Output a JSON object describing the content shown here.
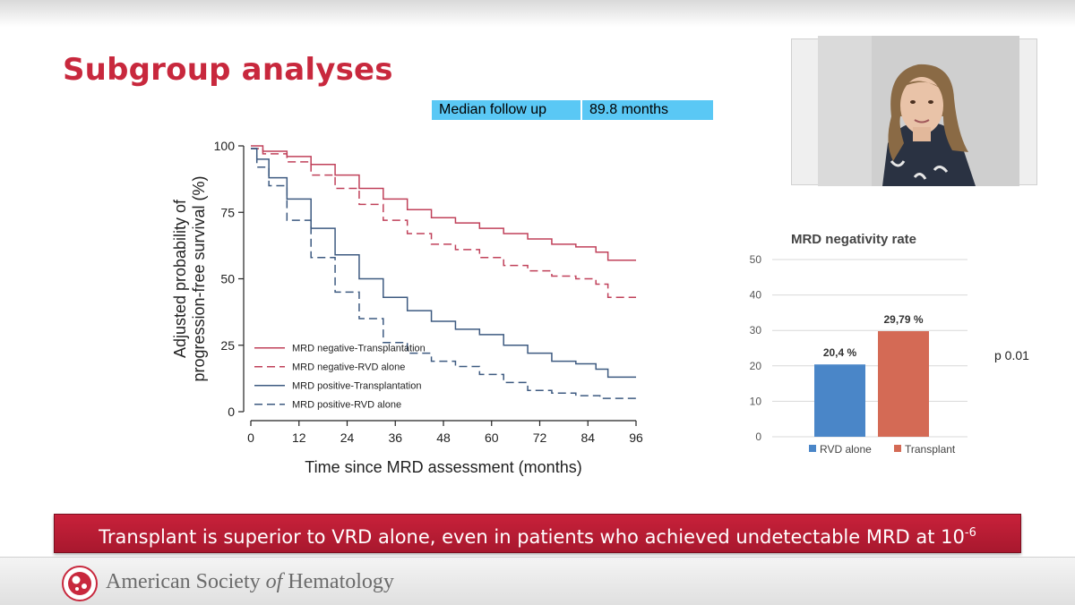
{
  "slide": {
    "title": "Subgroup analyses",
    "followup": {
      "label": "Median follow up",
      "value": "89.8 months"
    },
    "conclusion": {
      "text": "Transplant is superior to VRD alone, even in patients who achieved undetectable MRD at 10",
      "exponent": "-6"
    }
  },
  "footer": {
    "org_prefix": "American Society ",
    "org_of": "of",
    "org_suffix": " Hematology"
  },
  "colors": {
    "title_red": "#c8283d",
    "curve_red": "#c0415a",
    "curve_blue": "#3d5a80",
    "bar_blue": "#4a86c8",
    "bar_orange": "#d46a55",
    "highlight_cyan": "#5ac8f5"
  },
  "chart_data": [
    {
      "type": "line",
      "title": "",
      "xlabel": "Time since MRD assessment (months)",
      "ylabel_lines": [
        "Adjusted probability of",
        "progression-free survival (%)"
      ],
      "x_ticks": [
        0,
        12,
        24,
        36,
        48,
        60,
        72,
        84,
        96
      ],
      "y_ticks": [
        0,
        25,
        50,
        75,
        100
      ],
      "xlim": [
        0,
        96
      ],
      "ylim": [
        0,
        100
      ],
      "legend_position": "bottom-left",
      "series": [
        {
          "name": "MRD negative-Transplantation",
          "color": "#c0415a",
          "dash": "solid",
          "x": [
            0,
            6,
            12,
            18,
            24,
            30,
            36,
            42,
            48,
            54,
            60,
            66,
            72,
            78,
            84,
            88,
            90,
            96
          ],
          "y": [
            100,
            98,
            96,
            93,
            89,
            84,
            80,
            76,
            73,
            71,
            69,
            67,
            65,
            63,
            62,
            60,
            57,
            57
          ]
        },
        {
          "name": "MRD negative-RVD alone",
          "color": "#c0415a",
          "dash": "dashed",
          "x": [
            0,
            6,
            12,
            18,
            24,
            30,
            36,
            42,
            48,
            54,
            60,
            66,
            72,
            78,
            84,
            88,
            90,
            96
          ],
          "y": [
            99,
            97,
            94,
            89,
            84,
            78,
            72,
            67,
            63,
            61,
            58,
            55,
            53,
            51,
            50,
            48,
            43,
            43
          ]
        },
        {
          "name": "MRD positive-Transplantation",
          "color": "#3d5a80",
          "dash": "solid",
          "x": [
            0,
            3,
            6,
            12,
            18,
            24,
            30,
            36,
            42,
            48,
            54,
            60,
            66,
            72,
            78,
            84,
            88,
            90,
            96
          ],
          "y": [
            99,
            95,
            88,
            80,
            69,
            59,
            50,
            43,
            38,
            34,
            31,
            29,
            25,
            22,
            19,
            18,
            16,
            13,
            13
          ]
        },
        {
          "name": "MRD positive-RVD alone",
          "color": "#3d5a80",
          "dash": "dashed",
          "x": [
            0,
            3,
            6,
            12,
            18,
            24,
            30,
            36,
            42,
            48,
            54,
            60,
            66,
            72,
            78,
            84,
            90,
            96
          ],
          "y": [
            99,
            92,
            85,
            72,
            58,
            45,
            35,
            26,
            22,
            19,
            17,
            14,
            11,
            8,
            7,
            6,
            5,
            5
          ]
        }
      ]
    },
    {
      "type": "bar",
      "title": "MRD negativity rate",
      "categories": [
        "RVD alone",
        "Transplant"
      ],
      "values": [
        20.4,
        29.79
      ],
      "data_labels": [
        "20,4 %",
        "29,79 %"
      ],
      "colors": [
        "#4a86c8",
        "#d46a55"
      ],
      "y_ticks": [
        0,
        10,
        20,
        30,
        40,
        50
      ],
      "ylim": [
        0,
        50
      ],
      "annotation": "p 0.01",
      "legend_position": "bottom"
    }
  ]
}
